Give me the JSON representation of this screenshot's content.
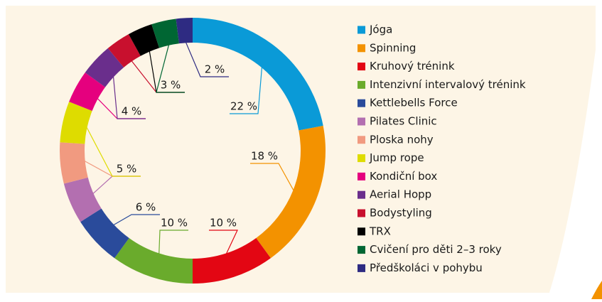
{
  "chart_data": {
    "type": "donut",
    "categories": [
      "Jóga",
      "Spinning",
      "Kruhový trénink",
      "Intenzivní intervalový trénink",
      "Kettlebells Force",
      "Pilates Clinic",
      "Ploska nohy",
      "Jump rope",
      "Kondiční box",
      "Aerial Hopp",
      "Bodystyling",
      "TRX",
      "Cvičení pro děti 2–3 roky",
      "Předškoláci v pohybu"
    ],
    "values": [
      22,
      18,
      10,
      10,
      6,
      5,
      5,
      5,
      4,
      4,
      3,
      3,
      3,
      2
    ],
    "value_labels": [
      "22 %",
      "18 %",
      "10 %",
      "10 %",
      "6 %",
      "5 %",
      null,
      null,
      "4 %",
      null,
      "3 %",
      null,
      null,
      "2 %"
    ],
    "colors": [
      "#0a9ad7",
      "#f39200",
      "#e30613",
      "#6aab2c",
      "#2a4b9b",
      "#b36fb0",
      "#f19a80",
      "#dedc00",
      "#e5007e",
      "#6a2e8c",
      "#c8102e",
      "#000000",
      "#006633",
      "#2e2b82"
    ],
    "legend": "right"
  }
}
